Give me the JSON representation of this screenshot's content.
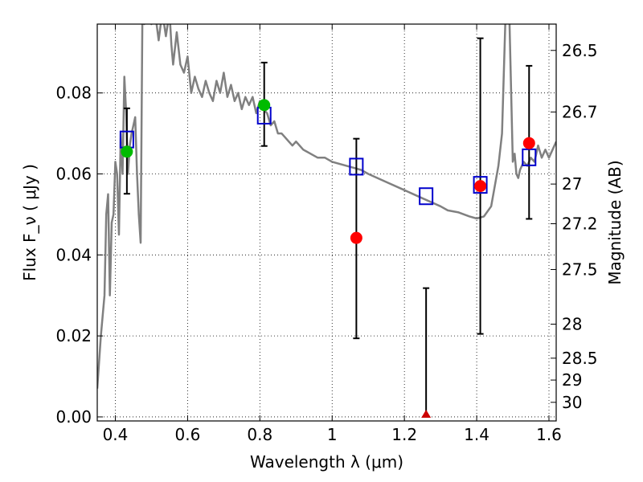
{
  "chart_data": {
    "type": "scatter",
    "xlabel": "Wavelength  λ (μm)",
    "ylabel": "Flux  F_ν  ( μJy )",
    "ylabel_right": "Magnitude (AB)",
    "xlim": [
      0.35,
      1.62
    ],
    "ylim": [
      -0.001,
      0.097
    ],
    "grid": true,
    "x_ticks": [
      0.4,
      0.6,
      0.8,
      1.0,
      1.2,
      1.4,
      1.6
    ],
    "x_tick_labels": [
      "0.4",
      "0.6",
      "0.8",
      "1",
      "1.2",
      "1.4",
      "1.6"
    ],
    "y_ticks": [
      0.0,
      0.02,
      0.04,
      0.06,
      0.08
    ],
    "y_tick_labels": [
      "0.00",
      "0.02",
      "0.04",
      "0.06",
      "0.08"
    ],
    "right_ticks": [
      {
        "label": "26.5",
        "flux": 0.0905
      },
      {
        "label": "26.7",
        "flux": 0.0753
      },
      {
        "label": "27",
        "flux": 0.0575
      },
      {
        "label": "27.2",
        "flux": 0.0477
      },
      {
        "label": "27.5",
        "flux": 0.0364
      },
      {
        "label": "28",
        "flux": 0.0229
      },
      {
        "label": "28.5",
        "flux": 0.0145
      },
      {
        "label": "29",
        "flux": 0.0091
      },
      {
        "label": "30",
        "flux": 0.0036
      }
    ],
    "colors": {
      "sed": "#808080",
      "model_box": "#0000cc",
      "green": "#00bb00",
      "red": "#ff0000",
      "errorbar": "#000000",
      "upper_limit": "#cc0000"
    },
    "sed_curve": {
      "x": [
        0.35,
        0.36,
        0.37,
        0.375,
        0.38,
        0.385,
        0.39,
        0.395,
        0.4,
        0.405,
        0.41,
        0.415,
        0.42,
        0.425,
        0.43,
        0.435,
        0.44,
        0.445,
        0.45,
        0.455,
        0.46,
        0.465,
        0.47,
        0.475,
        0.48,
        0.49,
        0.5,
        0.51,
        0.52,
        0.53,
        0.54,
        0.55,
        0.555,
        0.56,
        0.57,
        0.58,
        0.59,
        0.6,
        0.61,
        0.62,
        0.63,
        0.64,
        0.65,
        0.66,
        0.67,
        0.68,
        0.69,
        0.7,
        0.71,
        0.72,
        0.73,
        0.74,
        0.75,
        0.76,
        0.77,
        0.78,
        0.79,
        0.8,
        0.81,
        0.82,
        0.83,
        0.84,
        0.85,
        0.86,
        0.87,
        0.88,
        0.89,
        0.9,
        0.92,
        0.94,
        0.96,
        0.98,
        1.0,
        1.02,
        1.04,
        1.06,
        1.08,
        1.1,
        1.15,
        1.2,
        1.25,
        1.3,
        1.32,
        1.35,
        1.38,
        1.4,
        1.42,
        1.44,
        1.46,
        1.47,
        1.48,
        1.49,
        1.5,
        1.505,
        1.51,
        1.515,
        1.52,
        1.53,
        1.54,
        1.55,
        1.56,
        1.57,
        1.58,
        1.59,
        1.6,
        1.61,
        1.62
      ],
      "y": [
        0.007,
        0.02,
        0.03,
        0.05,
        0.055,
        0.03,
        0.048,
        0.05,
        0.063,
        0.06,
        0.045,
        0.07,
        0.06,
        0.084,
        0.075,
        0.06,
        0.067,
        0.07,
        0.072,
        0.074,
        0.06,
        0.05,
        0.043,
        0.1,
        0.097,
        0.1,
        0.097,
        0.1,
        0.093,
        0.1,
        0.094,
        0.1,
        0.092,
        0.087,
        0.095,
        0.087,
        0.085,
        0.089,
        0.08,
        0.084,
        0.081,
        0.079,
        0.083,
        0.08,
        0.078,
        0.083,
        0.08,
        0.085,
        0.079,
        0.082,
        0.078,
        0.08,
        0.076,
        0.079,
        0.077,
        0.079,
        0.075,
        0.078,
        0.076,
        0.075,
        0.072,
        0.073,
        0.07,
        0.07,
        0.069,
        0.068,
        0.067,
        0.068,
        0.066,
        0.065,
        0.064,
        0.064,
        0.063,
        0.0625,
        0.062,
        0.0615,
        0.061,
        0.06,
        0.058,
        0.056,
        0.054,
        0.052,
        0.051,
        0.0505,
        0.0495,
        0.049,
        0.0495,
        0.052,
        0.062,
        0.07,
        0.1,
        0.1,
        0.063,
        0.065,
        0.06,
        0.059,
        0.061,
        0.063,
        0.062,
        0.064,
        0.063,
        0.067,
        0.064,
        0.066,
        0.064,
        0.066,
        0.068
      ]
    },
    "model_points": {
      "x": [
        0.432,
        0.812,
        1.067,
        1.26,
        1.41,
        1.545
      ],
      "y": [
        0.0685,
        0.0744,
        0.0618,
        0.0545,
        0.0573,
        0.0641
      ]
    },
    "green_points": {
      "x": [
        0.432,
        0.812
      ],
      "y": [
        0.0655,
        0.077
      ],
      "err_low": [
        0.0551,
        0.0669
      ],
      "err_high": [
        0.0762,
        0.0875
      ]
    },
    "red_points": {
      "x": [
        1.067,
        1.41,
        1.545
      ],
      "y": [
        0.0442,
        0.057,
        0.0676
      ],
      "err_low": [
        0.0194,
        0.0205,
        0.0489
      ],
      "err_high": [
        0.0687,
        0.0935,
        0.0867
      ]
    },
    "upper_limit": {
      "x": 1.26,
      "y": 0.0,
      "err_high": 0.0318
    }
  }
}
